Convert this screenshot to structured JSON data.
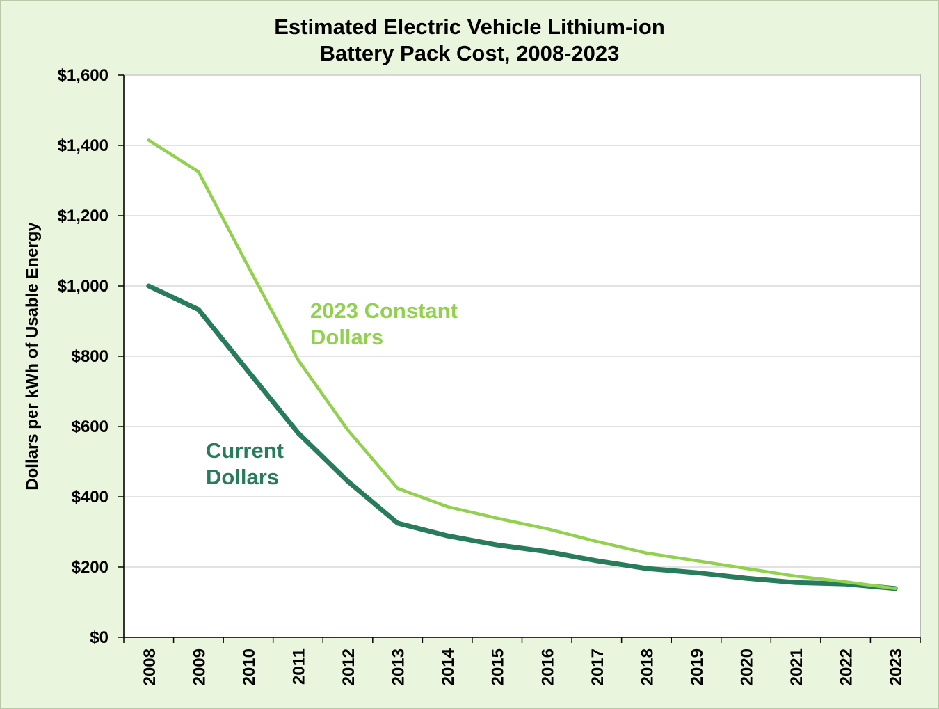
{
  "chart_data": {
    "type": "line",
    "title": "Estimated Electric Vehicle Lithium-ion Battery Pack Cost, 2008-2023",
    "title_lines": [
      "Estimated Electric Vehicle Lithium-ion",
      "Battery Pack Cost, 2008-2023"
    ],
    "xlabel": "",
    "ylabel": "Dollars per kWh of Usable Energy",
    "ylim": [
      0,
      1600
    ],
    "yticks": [
      0,
      200,
      400,
      600,
      800,
      1000,
      1200,
      1400,
      1600
    ],
    "ytick_labels": [
      "$0",
      "$200",
      "$400",
      "$600",
      "$800",
      "$1,000",
      "$1,200",
      "$1,400",
      "$1,600"
    ],
    "x": [
      "2008",
      "2009",
      "2010",
      "2011",
      "2012",
      "2013",
      "2014",
      "2015",
      "2016",
      "2017",
      "2018",
      "2019",
      "2020",
      "2021",
      "2022",
      "2023"
    ],
    "grid": true,
    "series": [
      {
        "name": "2023 Constant Dollars",
        "name_lines": [
          "2023 Constant",
          "Dollars"
        ],
        "color": "#92d050",
        "values": [
          1415,
          1325,
          1055,
          790,
          590,
          424,
          372,
          339,
          309,
          273,
          240,
          218,
          196,
          174,
          158,
          139
        ]
      },
      {
        "name": "Current Dollars",
        "name_lines": [
          "Current",
          "Dollars"
        ],
        "color": "#287c5c",
        "values": [
          1000,
          933,
          757,
          582,
          444,
          325,
          289,
          263,
          244,
          218,
          196,
          184,
          168,
          156,
          152,
          139
        ]
      }
    ]
  }
}
